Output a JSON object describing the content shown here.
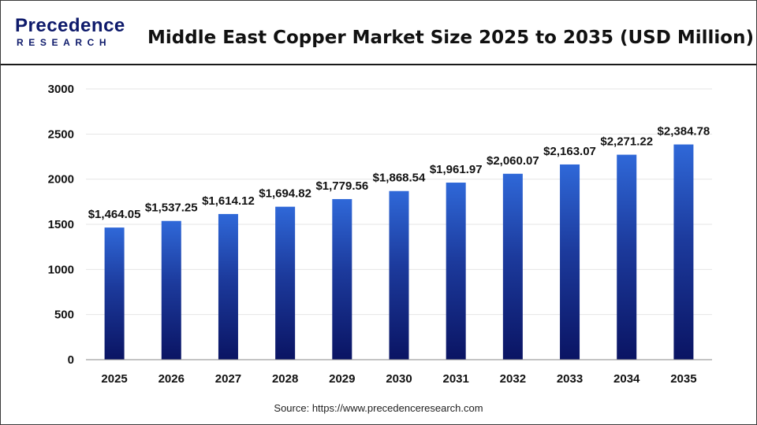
{
  "brand": {
    "logo_top": "Precedence",
    "logo_bottom": "RESEARCH",
    "logo_color": "#0e1a6b",
    "logo_accent": "#1e90ff"
  },
  "source": "Source: https://www.precedenceresearch.com",
  "chart_data": {
    "type": "bar",
    "title": "Middle East Copper Market Size 2025 to 2035 (USD Million)",
    "xlabel": "",
    "ylabel": "",
    "categories": [
      "2025",
      "2026",
      "2027",
      "2028",
      "2029",
      "2030",
      "2031",
      "2032",
      "2033",
      "2034",
      "2035"
    ],
    "values": [
      1464.05,
      1537.25,
      1614.12,
      1694.82,
      1779.56,
      1868.54,
      1961.97,
      2060.07,
      2163.07,
      2271.22,
      2384.78
    ],
    "data_labels": [
      "$1,464.05",
      "$1,537.25",
      "$1,614.12",
      "$1,694.82",
      "$1,779.56",
      "$1,868.54",
      "$1,961.97",
      "$2,060.07",
      "$2,163.07",
      "$2,271.22",
      "$2,384.78"
    ],
    "ylim": [
      0,
      3000
    ],
    "yticks": [
      0,
      500,
      1000,
      1500,
      2000,
      2500,
      3000
    ],
    "grid": true,
    "bar_color_top": "#2f68d8",
    "bar_color_bottom": "#0a1463"
  }
}
